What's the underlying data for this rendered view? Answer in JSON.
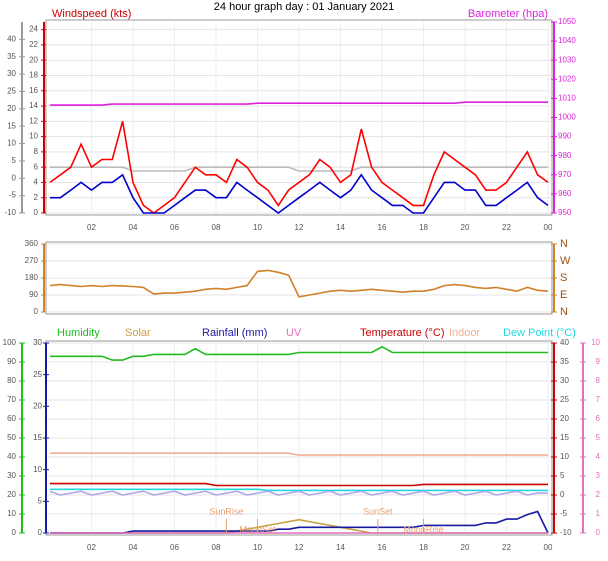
{
  "chart_data": [
    {
      "type": "line",
      "title": "24 hour graph day : 01 January 2021",
      "ylabel": "Windspeed (kts)",
      "y2label": "Barometer (hpa)",
      "x": [
        0,
        0.5,
        1,
        1.5,
        2,
        2.5,
        3,
        3.5,
        4,
        4.5,
        5,
        5.5,
        6,
        6.5,
        7,
        7.5,
        8,
        8.5,
        9,
        9.5,
        10,
        10.5,
        11,
        11.5,
        12,
        12.5,
        13,
        13.5,
        14,
        14.5,
        15,
        15.5,
        16,
        16.5,
        17,
        17.5,
        18,
        18.5,
        19,
        19.5,
        20,
        20.5,
        21,
        21.5,
        22,
        22.5,
        23,
        23.5,
        24
      ],
      "xlim": [
        0,
        24
      ],
      "xticks": [
        {
          "value": 2,
          "label": "02"
        },
        {
          "value": 4,
          "label": "04"
        },
        {
          "value": 6,
          "label": "06"
        },
        {
          "value": 8,
          "label": "08"
        },
        10,
        12,
        14,
        16,
        18,
        20,
        22,
        {
          "value": 24,
          "label": "00"
        }
      ],
      "ylim": [
        0,
        25
      ],
      "yticks": [
        0,
        2,
        4,
        6,
        8,
        10,
        12,
        14,
        16,
        18,
        20,
        22,
        24
      ],
      "y2lim": [
        950,
        1050
      ],
      "y2ticks": [
        950,
        960,
        970,
        980,
        990,
        1000,
        1010,
        1020,
        1030,
        1040,
        1050
      ],
      "y3lim": [
        -10,
        45
      ],
      "y3ticks": [
        -10,
        -5,
        0,
        5,
        10,
        15,
        20,
        25,
        30,
        35,
        40
      ],
      "grid": true,
      "series": [
        {
          "color": "#bbbbbb",
          "axis": "y",
          "values": [
            6,
            6,
            6,
            6,
            6,
            6,
            6,
            6,
            5.5,
            5.5,
            5.5,
            5.5,
            5.5,
            5.5,
            6,
            6,
            6,
            6,
            6,
            6,
            6,
            6,
            6,
            6,
            5.5,
            5.5,
            5.5,
            5.5,
            5.5,
            5.5,
            6,
            6,
            6,
            6,
            6,
            6,
            6,
            6,
            6,
            6,
            6,
            6,
            6,
            6,
            6,
            6,
            6,
            6,
            6
          ]
        },
        {
          "color": "#ff0000",
          "axis": "y",
          "values": [
            4,
            5,
            6,
            9,
            6,
            7,
            7,
            12,
            4,
            1,
            0,
            1,
            2,
            4,
            6,
            5,
            5,
            4,
            7,
            6,
            4,
            3,
            1,
            3,
            4,
            5,
            7,
            6,
            4,
            5,
            11,
            6,
            4,
            3,
            2,
            1,
            1,
            5,
            8,
            7,
            6,
            5,
            3,
            3,
            4,
            6,
            8,
            5,
            4
          ]
        },
        {
          "color": "#0000cc",
          "axis": "y",
          "values": [
            2,
            2,
            3,
            4,
            3,
            4,
            4,
            5,
            2,
            0,
            0,
            0,
            1,
            2,
            3,
            3,
            2,
            2,
            4,
            3,
            2,
            1,
            0,
            1,
            2,
            3,
            4,
            3,
            2,
            3,
            5,
            3,
            2,
            1,
            1,
            0,
            0,
            2,
            4,
            4,
            3,
            3,
            1,
            1,
            2,
            3,
            4,
            2,
            1
          ]
        },
        {
          "color": "#dd22dd",
          "axis": "y2",
          "values": [
            1006.5,
            1006.5,
            1006.5,
            1006.5,
            1006.5,
            1006.5,
            1007,
            1007,
            1007,
            1007,
            1007,
            1007,
            1007,
            1007,
            1007,
            1007,
            1007,
            1007,
            1007,
            1007,
            1007.5,
            1007.5,
            1007.5,
            1007.5,
            1007.5,
            1007.5,
            1007.5,
            1007.5,
            1007.5,
            1007.5,
            1007.5,
            1007.5,
            1007.5,
            1007.5,
            1007.5,
            1007.5,
            1007.5,
            1007.5,
            1007.5,
            1007.5,
            1008,
            1008,
            1008,
            1008,
            1008,
            1008,
            1008,
            1008,
            1008
          ]
        }
      ]
    },
    {
      "type": "line",
      "x": [
        0,
        0.5,
        1,
        1.5,
        2,
        2.5,
        3,
        3.5,
        4,
        4.5,
        5,
        5.5,
        6,
        6.5,
        7,
        7.5,
        8,
        8.5,
        9,
        9.5,
        10,
        10.5,
        11,
        11.5,
        12,
        12.5,
        13,
        13.5,
        14,
        14.5,
        15,
        15.5,
        16,
        16.5,
        17,
        17.5,
        18,
        18.5,
        19,
        19.5,
        20,
        20.5,
        21,
        21.5,
        22,
        22.5,
        23,
        23.5,
        24
      ],
      "xlim": [
        0,
        24
      ],
      "ylim": [
        0,
        360
      ],
      "yticks": [
        0,
        90,
        180,
        270,
        360
      ],
      "y2lim": [
        0,
        360
      ],
      "y2ticks": [
        {
          "value": 0,
          "label": "N"
        },
        {
          "value": 90,
          "label": "E"
        },
        {
          "value": 180,
          "label": "S"
        },
        {
          "value": 270,
          "label": "W"
        },
        {
          "value": 360,
          "label": "N"
        }
      ],
      "grid": true,
      "series": [
        {
          "color": "#d2802a",
          "axis": "y",
          "values": [
            140,
            145,
            140,
            135,
            140,
            135,
            140,
            138,
            135,
            130,
            95,
            100,
            100,
            105,
            110,
            120,
            125,
            120,
            130,
            140,
            215,
            220,
            210,
            195,
            80,
            90,
            100,
            110,
            115,
            110,
            115,
            120,
            115,
            110,
            105,
            110,
            110,
            120,
            140,
            145,
            140,
            130,
            125,
            130,
            120,
            110,
            130,
            115,
            110
          ]
        }
      ]
    },
    {
      "type": "line",
      "x": [
        0,
        0.5,
        1,
        1.5,
        2,
        2.5,
        3,
        3.5,
        4,
        4.5,
        5,
        5.5,
        6,
        6.5,
        7,
        7.5,
        8,
        8.5,
        9,
        9.5,
        10,
        10.5,
        11,
        11.5,
        12,
        12.5,
        13,
        13.5,
        14,
        14.5,
        15,
        15.5,
        16,
        16.5,
        17,
        17.5,
        18,
        18.5,
        19,
        19.5,
        20,
        20.5,
        21,
        21.5,
        22,
        22.5,
        23,
        23.5,
        24
      ],
      "xlim": [
        0,
        24
      ],
      "xticks": [
        {
          "value": 2,
          "label": "02"
        },
        {
          "value": 4,
          "label": "04"
        },
        {
          "value": 6,
          "label": "06"
        },
        {
          "value": 8,
          "label": "08"
        },
        10,
        12,
        14,
        16,
        18,
        20,
        22,
        {
          "value": 24,
          "label": "00"
        }
      ],
      "ylim": [
        0,
        100
      ],
      "yticks": [
        0,
        10,
        20,
        30,
        40,
        50,
        60,
        70,
        80,
        90,
        100
      ],
      "y2lim": [
        -10,
        40
      ],
      "y2ticks": [
        -10,
        -5,
        0,
        5,
        10,
        15,
        20,
        25,
        30,
        35,
        40
      ],
      "y3lim": [
        0,
        30
      ],
      "y3ticks": [
        0,
        5,
        10,
        15,
        20,
        25,
        30
      ],
      "y4lim": [
        0,
        10
      ],
      "y4ticks": [
        0,
        1,
        2,
        3,
        4,
        5,
        6,
        7,
        8,
        9,
        10
      ],
      "grid": true,
      "series": [
        {
          "name": "Humidity",
          "color": "#22bb22",
          "axis": "y",
          "values": [
            93,
            93,
            93,
            93,
            93,
            93,
            91,
            91,
            93,
            93,
            94,
            94,
            94,
            94,
            97,
            94,
            94,
            94,
            94,
            94,
            94,
            94,
            94,
            94,
            95,
            95,
            95,
            95,
            95,
            95,
            95,
            95,
            98,
            95,
            95,
            95,
            95,
            95,
            95,
            95,
            95,
            95,
            95,
            95,
            95,
            95,
            95,
            95,
            95
          ]
        },
        {
          "name": "Solar",
          "color": "#c8a040",
          "axis": "y4",
          "values": [
            0,
            0,
            0,
            0,
            0,
            0,
            0,
            0,
            0,
            0,
            0,
            0,
            0,
            0,
            0,
            0,
            0,
            0,
            0.1,
            0.2,
            0.3,
            0.4,
            0.5,
            0.6,
            0.7,
            0.6,
            0.5,
            0.4,
            0.3,
            0.2,
            0.1,
            0,
            0,
            0,
            0,
            0,
            0,
            0,
            0,
            0,
            0,
            0,
            0,
            0,
            0,
            0,
            0,
            0,
            0
          ]
        },
        {
          "name": "Rainfall (mm)",
          "color": "#1a1aa0",
          "axis": "y3",
          "values": [
            0,
            0,
            0,
            0,
            0,
            0,
            0,
            0,
            0.3,
            0.3,
            0.3,
            0.3,
            0.3,
            0.3,
            0.3,
            0.3,
            0.3,
            0.3,
            0.3,
            0.3,
            0.3,
            0.3,
            0.6,
            0.6,
            0.9,
            0.9,
            0.9,
            0.9,
            0.9,
            0.9,
            0.9,
            0.9,
            0.9,
            0.9,
            0.9,
            0.9,
            1.2,
            1.2,
            1.2,
            1.2,
            1.2,
            1.2,
            1.6,
            1.6,
            2.2,
            2.2,
            2.9,
            3.4,
            0
          ]
        },
        {
          "name": "UV",
          "color": "#e070c0",
          "axis": "y4",
          "values": [
            0,
            0,
            0,
            0,
            0,
            0,
            0,
            0,
            0,
            0,
            0,
            0,
            0,
            0,
            0,
            0,
            0,
            0,
            0,
            0,
            0,
            0,
            0,
            0,
            0,
            0,
            0,
            0,
            0,
            0,
            0,
            0,
            0,
            0,
            0,
            0,
            0,
            0,
            0,
            0,
            0,
            0,
            0,
            0,
            0,
            0,
            0,
            0,
            0
          ]
        },
        {
          "name": "Temperature (°C)",
          "color": "#cc0000",
          "axis": "y2",
          "values": [
            3,
            3,
            3,
            3,
            3,
            3,
            3,
            3,
            3,
            3,
            3,
            3,
            3,
            3,
            3,
            3,
            2.5,
            2.5,
            2.5,
            2.5,
            2.5,
            2.5,
            2.5,
            2.5,
            2.5,
            2.5,
            2.5,
            2.5,
            2.5,
            2.5,
            2.5,
            2.5,
            2.5,
            2.5,
            2.5,
            2.5,
            2.8,
            2.8,
            2.8,
            2.8,
            2.8,
            2.8,
            2.8,
            2.8,
            2.8,
            2.8,
            2.8,
            2.8,
            2.8
          ]
        },
        {
          "name": "Indoor",
          "color": "#f0b090",
          "axis": "y2",
          "values": [
            11,
            11,
            11,
            11,
            11,
            11,
            11,
            11,
            11,
            11,
            11,
            11,
            11,
            11,
            11,
            11,
            11,
            11,
            11,
            11,
            11,
            11,
            11,
            11,
            10.5,
            10.5,
            10.5,
            10.5,
            10.5,
            10.5,
            10.5,
            10.5,
            10.5,
            10.5,
            10.5,
            10.5,
            10.5,
            10.5,
            10.5,
            10.5,
            10.5,
            10.5,
            10.5,
            10.5,
            10.5,
            10.5,
            10.5,
            10.5,
            10.5
          ]
        },
        {
          "name": "Dew Point (°C)",
          "color": "#22d8e0",
          "axis": "y2",
          "values": [
            1.5,
            1.5,
            1.5,
            1.5,
            1.5,
            1.5,
            1.5,
            1.5,
            1.5,
            1.5,
            1.5,
            1.5,
            1.5,
            1.5,
            1.5,
            1.5,
            1.5,
            1.5,
            1.5,
            1.5,
            1.5,
            1.2,
            1.2,
            1.2,
            1.2,
            1.2,
            1.2,
            1.2,
            1.2,
            1.2,
            1.2,
            1.2,
            1.2,
            1.2,
            1.2,
            1.2,
            1.2,
            1.2,
            1.2,
            1.2,
            1.2,
            1.2,
            1.2,
            1.2,
            1.2,
            1.2,
            1.2,
            1.2,
            1.2
          ]
        },
        {
          "color": "#b0a8e8",
          "axis": "y2",
          "values": [
            1,
            0,
            0.5,
            1,
            0,
            0.5,
            1,
            0,
            0.5,
            1,
            0,
            0.5,
            1,
            0,
            0.5,
            1,
            0,
            0.5,
            1,
            0,
            0.5,
            1,
            0,
            0.5,
            1,
            0,
            0.5,
            1,
            0,
            0.5,
            1,
            0,
            0.5,
            1,
            0,
            0.5,
            1,
            0,
            0.5,
            1,
            0,
            0.5,
            1,
            0,
            0.5,
            1,
            0,
            0.5,
            0.5
          ]
        }
      ],
      "annotations": [
        {
          "text": "SunRise",
          "x": 8.5
        },
        {
          "text": "MoonSet",
          "x": 10
        },
        {
          "text": "SunSet",
          "x": 15.8
        },
        {
          "text": "MoonRise",
          "x": 18
        }
      ]
    }
  ]
}
